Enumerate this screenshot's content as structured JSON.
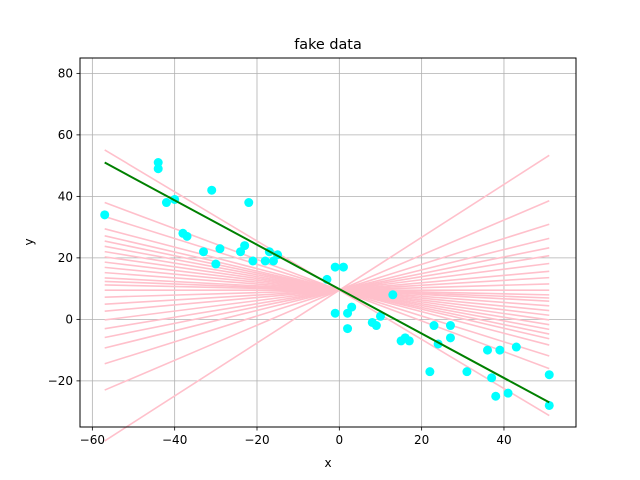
{
  "chart_data": {
    "type": "scatter",
    "title": "fake data",
    "xlabel": "x",
    "ylabel": "y",
    "xlim": [
      -63,
      57.5
    ],
    "ylim": [
      -35,
      85
    ],
    "xticks": [
      -60,
      -40,
      -20,
      0,
      20,
      40
    ],
    "yticks": [
      -20,
      0,
      20,
      40,
      60,
      80
    ],
    "grid": true,
    "point_color": "#00ffff",
    "fit_color": "#008000",
    "candidate_color": "#ffc0cb",
    "points": [
      [
        -57,
        34
      ],
      [
        -44,
        51
      ],
      [
        -44,
        49
      ],
      [
        -42,
        38
      ],
      [
        -40,
        39
      ],
      [
        -38,
        28
      ],
      [
        -37,
        27
      ],
      [
        -33,
        22
      ],
      [
        -31,
        42
      ],
      [
        -30,
        18
      ],
      [
        -29,
        23
      ],
      [
        -24,
        22
      ],
      [
        -23,
        24
      ],
      [
        -22,
        38
      ],
      [
        -21,
        19
      ],
      [
        -18,
        19
      ],
      [
        -17,
        22
      ],
      [
        -16,
        19
      ],
      [
        -15,
        21
      ],
      [
        -3,
        13
      ],
      [
        -1,
        2
      ],
      [
        -1,
        17
      ],
      [
        1,
        17
      ],
      [
        2,
        -3
      ],
      [
        2,
        2
      ],
      [
        3,
        4
      ],
      [
        8,
        -1
      ],
      [
        9,
        -2
      ],
      [
        10,
        1
      ],
      [
        13,
        8
      ],
      [
        15,
        -7
      ],
      [
        16,
        -6
      ],
      [
        17,
        -7
      ],
      [
        22,
        -17
      ],
      [
        23,
        -2
      ],
      [
        24,
        -8
      ],
      [
        27,
        -6
      ],
      [
        27,
        -2
      ],
      [
        31,
        -17
      ],
      [
        36,
        -10
      ],
      [
        37,
        -19
      ],
      [
        38,
        -25
      ],
      [
        39,
        -10
      ],
      [
        41,
        -24
      ],
      [
        43,
        -9
      ],
      [
        51,
        -18
      ],
      [
        51,
        -28
      ]
    ],
    "candidate_lines": {
      "x_range": [
        -57,
        51
      ],
      "slopes": [
        -0.8,
        -0.5,
        -0.42,
        -0.35,
        -0.31,
        -0.28,
        -0.25,
        -0.22,
        -0.19,
        -0.16,
        -0.13,
        -0.1,
        -0.07,
        -0.05,
        -0.03,
        0,
        0.04,
        0.08,
        0.12,
        0.17,
        0.22,
        0.27,
        0.33,
        0.42,
        0.57,
        0.86
      ],
      "intercept_at_x0": 9.5
    },
    "fit_line": {
      "x": [
        -57,
        51
      ],
      "y": [
        51,
        -27
      ]
    }
  }
}
